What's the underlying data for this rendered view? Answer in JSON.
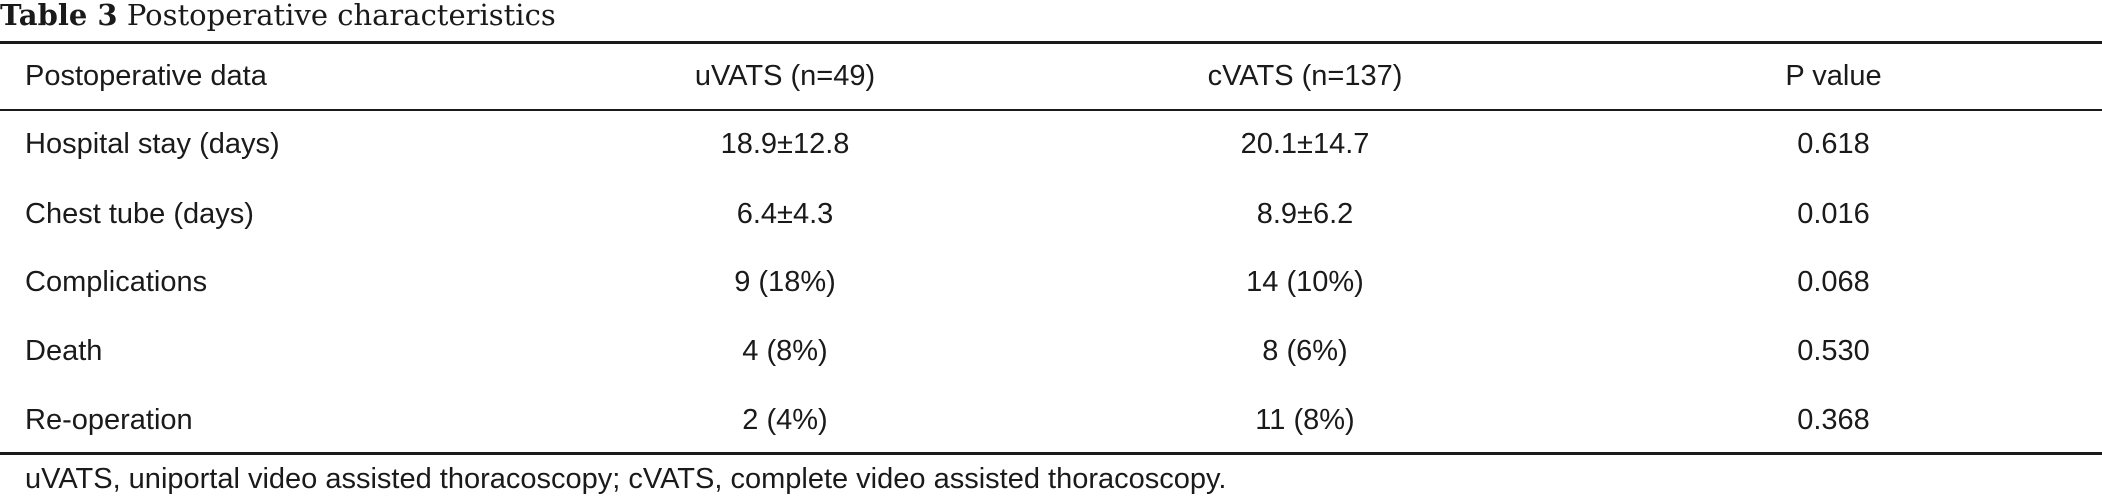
{
  "caption": {
    "label": "Table 3",
    "title": "Postoperative characteristics"
  },
  "table": {
    "headers": [
      "Postoperative data",
      "uVATS (n=49)",
      "cVATS (n=137)",
      "P value"
    ],
    "rows": [
      [
        "Hospital stay (days)",
        "18.9±12.8",
        "20.1±14.7",
        "0.618"
      ],
      [
        "Chest tube (days)",
        "6.4±4.3",
        "8.9±6.2",
        "0.016"
      ],
      [
        "Complications",
        "9 (18%)",
        "14 (10%)",
        "0.068"
      ],
      [
        "Death",
        "4 (8%)",
        "8 (6%)",
        "0.530"
      ],
      [
        "Re-operation",
        "2 (4%)",
        "11 (8%)",
        "0.368"
      ]
    ]
  },
  "footnote": "uVATS, uniportal video assisted thoracoscopy; cVATS, complete video assisted thoracoscopy."
}
